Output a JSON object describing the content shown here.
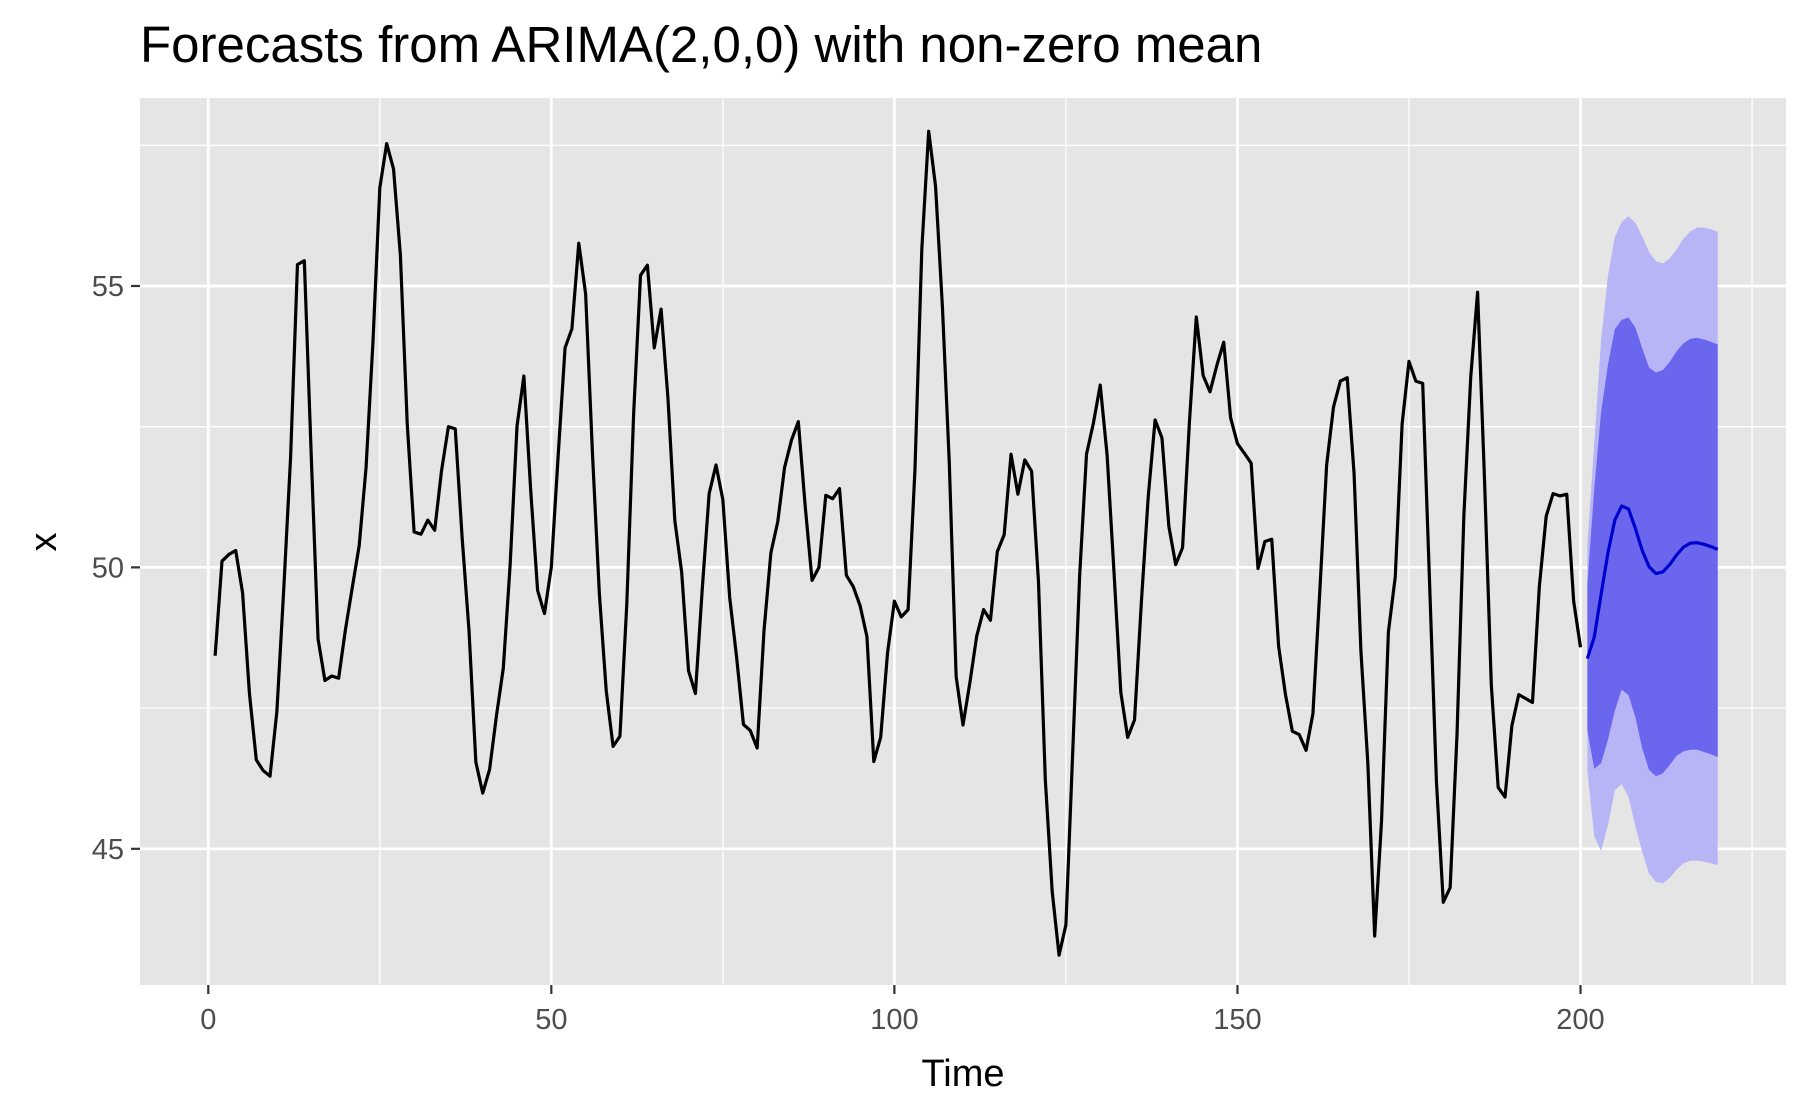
{
  "chart_data": {
    "type": "line",
    "title": "Forecasts from ARIMA(2,0,0) with non-zero mean",
    "xlabel": "Time",
    "ylabel": "x",
    "xlim": [
      -9.95,
      229.95
    ],
    "ylim": [
      42.58,
      58.34
    ],
    "x_ticks": [
      0,
      50,
      100,
      150,
      200
    ],
    "y_ticks": [
      45,
      50,
      55
    ],
    "grid": true,
    "legend": "none",
    "colors": {
      "panel": "#e5e5e5",
      "grid": "#ffffff",
      "series": "#000000",
      "forecast": "#0000cc",
      "pi80": "#6b66ee",
      "pi95": "#b7b5f5"
    },
    "series": [
      {
        "x_start": 1,
        "values": [
          48.43,
          50.11,
          50.23,
          50.3,
          49.55,
          47.76,
          46.58,
          46.39,
          46.29,
          47.44,
          49.61,
          51.96,
          55.38,
          55.45,
          52.01,
          48.73,
          47.99,
          48.07,
          48.03,
          48.9,
          49.65,
          50.39,
          51.78,
          54.0,
          56.74,
          57.53,
          57.08,
          55.55,
          52.55,
          50.63,
          50.59,
          50.84,
          50.66,
          51.72,
          52.5,
          52.46,
          50.53,
          48.88,
          46.54,
          45.99,
          46.41,
          47.36,
          48.21,
          50.05,
          52.51,
          53.4,
          51.36,
          49.59,
          49.18,
          50.01,
          51.99,
          53.9,
          54.24,
          55.76,
          54.86,
          52.01,
          49.53,
          47.81,
          46.82,
          47.0,
          49.35,
          52.74,
          55.19,
          55.37,
          53.9,
          54.59,
          53.0,
          50.83,
          49.91,
          48.16,
          47.76,
          49.62,
          51.31,
          51.82,
          51.2,
          49.46,
          48.41,
          47.21,
          47.1,
          46.79,
          48.88,
          50.26,
          50.81,
          51.78,
          52.26,
          52.59,
          51.09,
          49.77,
          50.0,
          51.28,
          51.22,
          51.4,
          49.86,
          49.66,
          49.32,
          48.77,
          46.55,
          46.98,
          48.48,
          49.4,
          49.12,
          49.25,
          51.74,
          55.66,
          57.75,
          56.77,
          54.63,
          51.86,
          48.06,
          47.2,
          47.95,
          48.78,
          49.25,
          49.06,
          50.28,
          50.58,
          52.01,
          51.3,
          51.91,
          51.71,
          49.75,
          46.22,
          44.24,
          43.11,
          43.65,
          46.75,
          49.85,
          52.01,
          52.56,
          53.24,
          52.0,
          49.93,
          47.78,
          46.98,
          47.29,
          49.39,
          51.26,
          52.62,
          52.3,
          50.73,
          50.05,
          50.35,
          52.58,
          54.45,
          53.41,
          53.12,
          53.59,
          54.0,
          52.66,
          52.2,
          52.03,
          51.85,
          49.98,
          50.46,
          50.5,
          48.6,
          47.74,
          47.09,
          47.03,
          46.75,
          47.4,
          49.57,
          51.82,
          52.85,
          53.31,
          53.37,
          51.66,
          48.5,
          46.53,
          43.45,
          45.49,
          48.85,
          49.83,
          52.55,
          53.66,
          53.31,
          53.27,
          49.73,
          46.2,
          44.05,
          44.31,
          47.03,
          50.92,
          53.38,
          54.89,
          51.59,
          47.91,
          46.09,
          45.92,
          47.19,
          47.74,
          47.67,
          47.6,
          49.66,
          50.91,
          51.31,
          51.27,
          51.3,
          49.4,
          48.58
        ]
      }
    ],
    "forecast": {
      "x_start": 201,
      "mean": [
        48.38,
        48.76,
        49.52,
        50.26,
        50.84,
        51.09,
        51.04,
        50.69,
        50.3,
        50.01,
        49.89,
        49.92,
        50.05,
        50.22,
        50.36,
        50.43,
        50.44,
        50.41,
        50.37,
        50.32
      ],
      "lo80": [
        47.11,
        46.42,
        46.52,
        46.94,
        47.45,
        47.83,
        47.73,
        47.34,
        46.78,
        46.4,
        46.29,
        46.34,
        46.49,
        46.65,
        46.73,
        46.76,
        46.76,
        46.72,
        46.68,
        46.63
      ],
      "hi80": [
        49.71,
        51.39,
        52.76,
        53.6,
        54.23,
        54.4,
        54.44,
        54.26,
        53.89,
        53.55,
        53.46,
        53.51,
        53.65,
        53.84,
        53.98,
        54.06,
        54.08,
        54.05,
        54.01,
        53.96
      ],
      "lo95": [
        46.39,
        45.22,
        44.96,
        45.42,
        46.04,
        46.15,
        45.92,
        45.4,
        44.94,
        44.56,
        44.41,
        44.39,
        44.48,
        44.63,
        44.74,
        44.79,
        44.79,
        44.77,
        44.74,
        44.71
      ],
      "hi95": [
        50.4,
        52.2,
        54.04,
        55.18,
        55.87,
        56.14,
        56.24,
        56.12,
        55.88,
        55.6,
        55.44,
        55.4,
        55.49,
        55.65,
        55.84,
        55.97,
        56.04,
        56.04,
        56.01,
        55.96
      ]
    }
  }
}
